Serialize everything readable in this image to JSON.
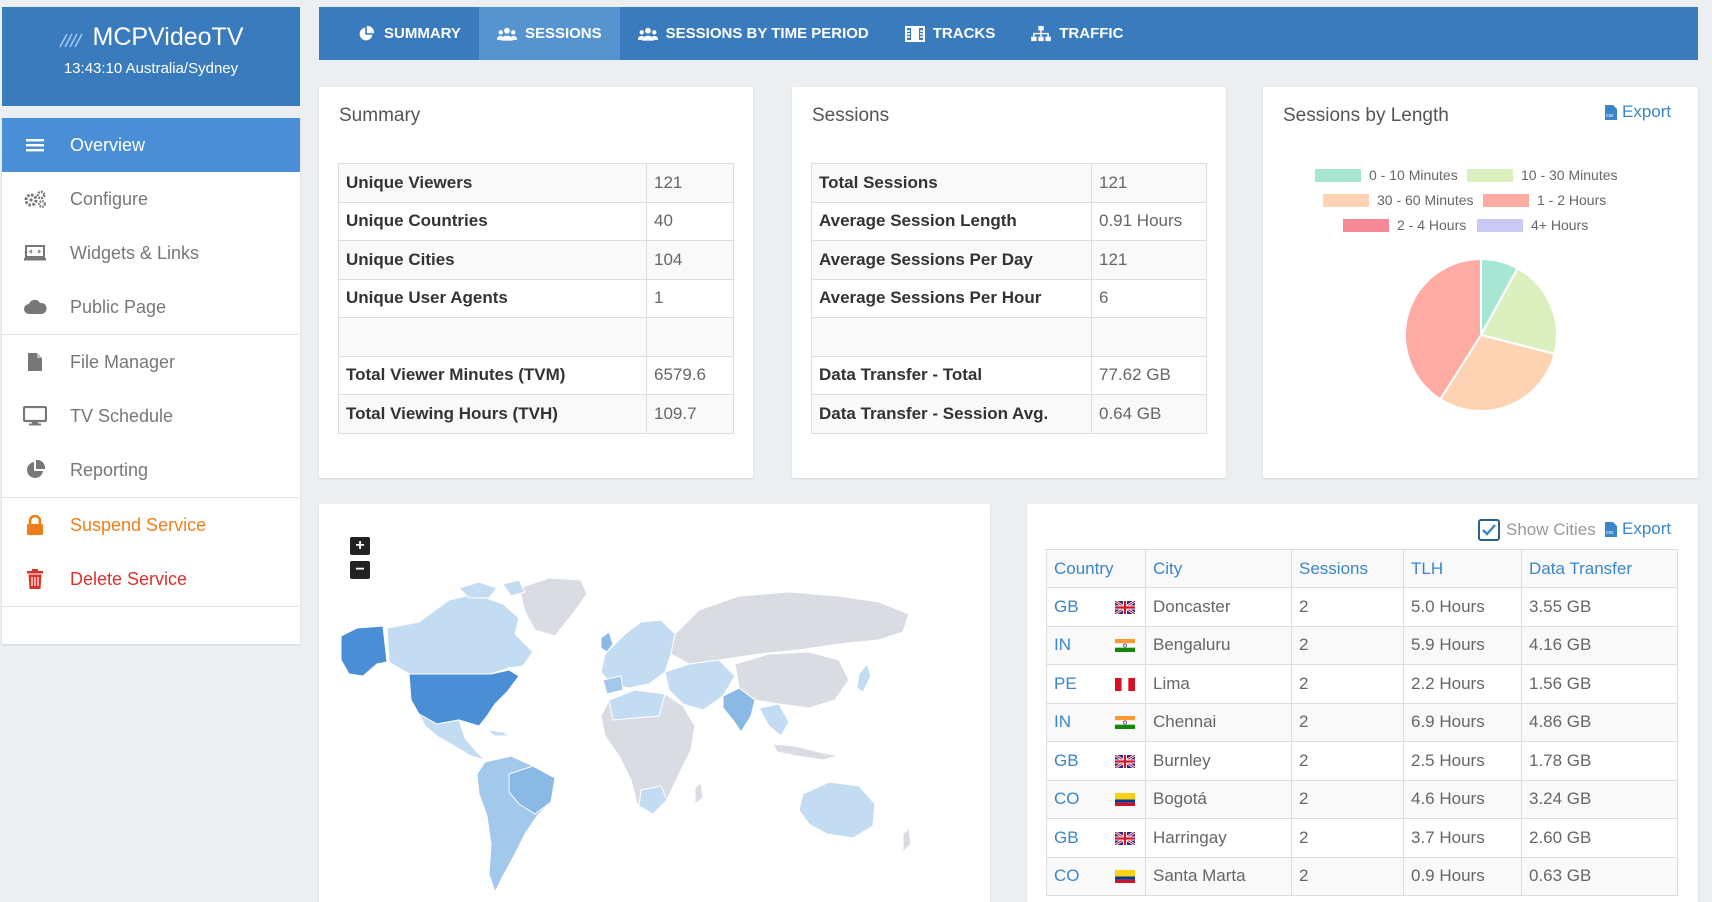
{
  "app": {
    "name": "MCPVideoTV",
    "clock": "13:43:10 Australia/Sydney"
  },
  "sidebar": {
    "items": [
      {
        "label": "Overview",
        "icon": "bars-icon"
      },
      {
        "label": "Configure",
        "icon": "gears-icon"
      },
      {
        "label": "Widgets & Links",
        "icon": "laptop-code-icon"
      },
      {
        "label": "Public Page",
        "icon": "cloud-icon"
      },
      {
        "label": "File Manager",
        "icon": "file-icon"
      },
      {
        "label": "TV Schedule",
        "icon": "desktop-icon"
      },
      {
        "label": "Reporting",
        "icon": "pie-chart-icon"
      },
      {
        "label": "Suspend Service",
        "icon": "lock-icon"
      },
      {
        "label": "Delete Service",
        "icon": "trash-icon"
      }
    ]
  },
  "tabs": [
    {
      "label": "SUMMARY",
      "icon": "pie-chart-icon"
    },
    {
      "label": "SESSIONS",
      "icon": "users-icon"
    },
    {
      "label": "SESSIONS BY TIME PERIOD",
      "icon": "users-icon"
    },
    {
      "label": "TRACKS",
      "icon": "film-icon"
    },
    {
      "label": "TRAFFIC",
      "icon": "sitemap-icon"
    }
  ],
  "summary": {
    "title": "Summary",
    "rows": [
      {
        "k": "Unique Viewers",
        "v": "121"
      },
      {
        "k": "Unique Countries",
        "v": "40"
      },
      {
        "k": "Unique Cities",
        "v": "104"
      },
      {
        "k": "Unique User Agents",
        "v": "1"
      },
      {
        "k": "",
        "v": ""
      },
      {
        "k": "Total Viewer Minutes (TVM)",
        "v": "6579.6"
      },
      {
        "k": "Total Viewing Hours (TVH)",
        "v": "109.7"
      }
    ]
  },
  "sessions": {
    "title": "Sessions",
    "rows": [
      {
        "k": "Total Sessions",
        "v": "121"
      },
      {
        "k": "Average Session Length",
        "v": "0.91 Hours"
      },
      {
        "k": "Average Sessions Per Day",
        "v": "121"
      },
      {
        "k": "Average Sessions Per Hour",
        "v": "6"
      },
      {
        "k": "",
        "v": ""
      },
      {
        "k": "Data Transfer - Total",
        "v": "77.62 GB"
      },
      {
        "k": "Data Transfer - Session Avg.",
        "v": "0.64 GB"
      }
    ]
  },
  "by_length": {
    "title": "Sessions by Length",
    "export": "Export"
  },
  "chart_data": {
    "type": "pie",
    "categories": [
      "0 - 10 Minutes",
      "10 - 30 Minutes",
      "30 - 60 Minutes",
      "1 - 2 Hours",
      "2 - 4 Hours",
      "4+ Hours"
    ],
    "values": [
      8,
      21,
      30,
      41,
      0,
      0
    ],
    "colors": [
      "#a8e6d4",
      "#dcefbf",
      "#fdd3b3",
      "#fdaba3",
      "#f88a97",
      "#c9c9f5"
    ],
    "legend": "top"
  },
  "map": {
    "zoom_in": "+",
    "zoom_out": "−"
  },
  "cities": {
    "show_cities": "Show Cities",
    "export": "Export",
    "headers": [
      "Country",
      "City",
      "Sessions",
      "TLH",
      "Data Transfer"
    ],
    "rows": [
      {
        "country": "GB",
        "flag": "gb",
        "city": "Doncaster",
        "sessions": "2",
        "tlh": "5.0 Hours",
        "data": "3.55 GB"
      },
      {
        "country": "IN",
        "flag": "in",
        "city": "Bengaluru",
        "sessions": "2",
        "tlh": "5.9 Hours",
        "data": "4.16 GB"
      },
      {
        "country": "PE",
        "flag": "pe",
        "city": "Lima",
        "sessions": "2",
        "tlh": "2.2 Hours",
        "data": "1.56 GB"
      },
      {
        "country": "IN",
        "flag": "in",
        "city": "Chennai",
        "sessions": "2",
        "tlh": "6.9 Hours",
        "data": "4.86 GB"
      },
      {
        "country": "GB",
        "flag": "gb",
        "city": "Burnley",
        "sessions": "2",
        "tlh": "2.5 Hours",
        "data": "1.78 GB"
      },
      {
        "country": "CO",
        "flag": "co",
        "city": "Bogotá",
        "sessions": "2",
        "tlh": "4.6 Hours",
        "data": "3.24 GB"
      },
      {
        "country": "GB",
        "flag": "gb",
        "city": "Harringay",
        "sessions": "2",
        "tlh": "3.7 Hours",
        "data": "2.60 GB"
      },
      {
        "country": "CO",
        "flag": "co",
        "city": "Santa Marta",
        "sessions": "2",
        "tlh": "0.9 Hours",
        "data": "0.63 GB"
      }
    ]
  }
}
